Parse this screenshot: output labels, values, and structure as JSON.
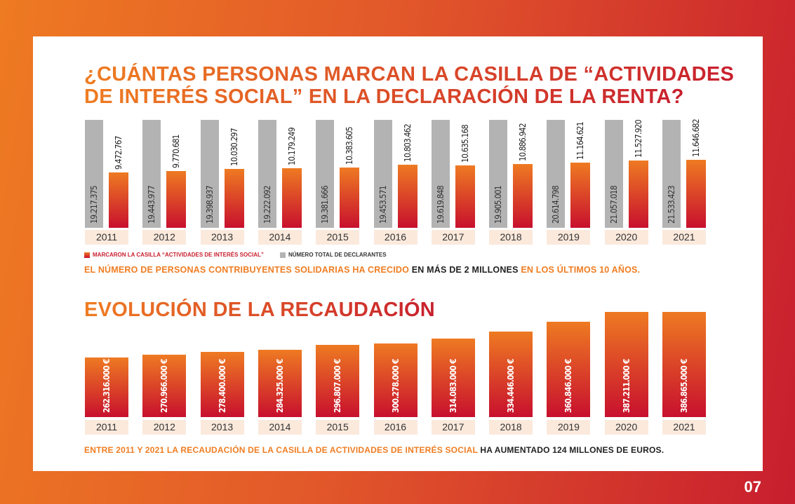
{
  "title1": [
    "¿CUÁNTAS PERSONAS MARCAN LA CASILLA DE “ACTIVIDADES",
    "DE INTERÉS SOCIAL” EN LA DECLARACIÓN DE LA RENTA?"
  ],
  "title2": "EVOLUCIÓN DE LA RECAUDACIÓN",
  "note1": {
    "a": "EL NÚMERO DE PERSONAS CONTRIBUYENTES SOLIDARIAS HA CRECIDO ",
    "b": "EN MÁS DE 2 MILLONES",
    "c": " EN LOS ÚLTIMOS 10 AÑOS."
  },
  "note2": {
    "a": "ENTRE 2011 Y 2021 LA RECAUDACIÓN DE LA CASILLA DE ACTIVIDADES DE INTERÉS SOCIAL ",
    "b": "HA AUMENTADO 124 MILLONES DE EUROS."
  },
  "page_number": "07",
  "colors": {
    "accent_orange": "#ee7a22",
    "accent_red": "#c8102e",
    "gray": "#b3b3b3",
    "year_bg": "#fbe9dc"
  },
  "chart_data": [
    {
      "type": "bar",
      "categories": [
        "2011",
        "2012",
        "2013",
        "2014",
        "2015",
        "2016",
        "2017",
        "2018",
        "2019",
        "2020",
        "2021"
      ],
      "series": [
        {
          "name": "NÚMERO TOTAL DE DECLARANTES",
          "color": "#b3b3b3",
          "values": [
            19217375,
            19443977,
            19398937,
            19222092,
            19381666,
            19453571,
            19619848,
            19905001,
            20614798,
            21057018,
            21533423
          ],
          "labels": [
            "19.217.375",
            "19.443.977",
            "19.398.937",
            "19.222.092",
            "19.381.666",
            "19.453.571",
            "19.619.848",
            "19.905.001",
            "20.614.798",
            "21.057.018",
            "21.533.423"
          ]
        },
        {
          "name": "MARCARON LA CASILLA “ACTIVIDADES DE INTERÉS SOCIAL”",
          "color": "#c8102e",
          "values": [
            9472767,
            9770681,
            10030297,
            10179249,
            10383605,
            10803462,
            10635168,
            10886942,
            11164621,
            11527920,
            11646682
          ],
          "labels": [
            "9.472.767",
            "9.770.681",
            "10.030.297",
            "10.179.249",
            "10.383.605",
            "10.803.462",
            "10.635.168",
            "10.886.942",
            "11.164.621",
            "11.527.920",
            "11.646.682"
          ]
        }
      ],
      "legend": "bottom-left",
      "grid": false
    },
    {
      "type": "bar",
      "categories": [
        "2011",
        "2012",
        "2013",
        "2014",
        "2015",
        "2016",
        "2017",
        "2018",
        "2019",
        "2020",
        "2021"
      ],
      "values": [
        262316000,
        270966000,
        278400000,
        284325000,
        296807000,
        300278000,
        314083000,
        334446000,
        360846000,
        387211000,
        386865000
      ],
      "labels": [
        "262.316.000 €",
        "270.966.000 €",
        "278.400.000 €",
        "284.325.000 €",
        "296.807.000 €",
        "300.278.000 €",
        "314.083.000 €",
        "334.446.000 €",
        "360.846.000 €",
        "387.211.000 €",
        "386.865.000 €"
      ],
      "grid": false
    }
  ]
}
